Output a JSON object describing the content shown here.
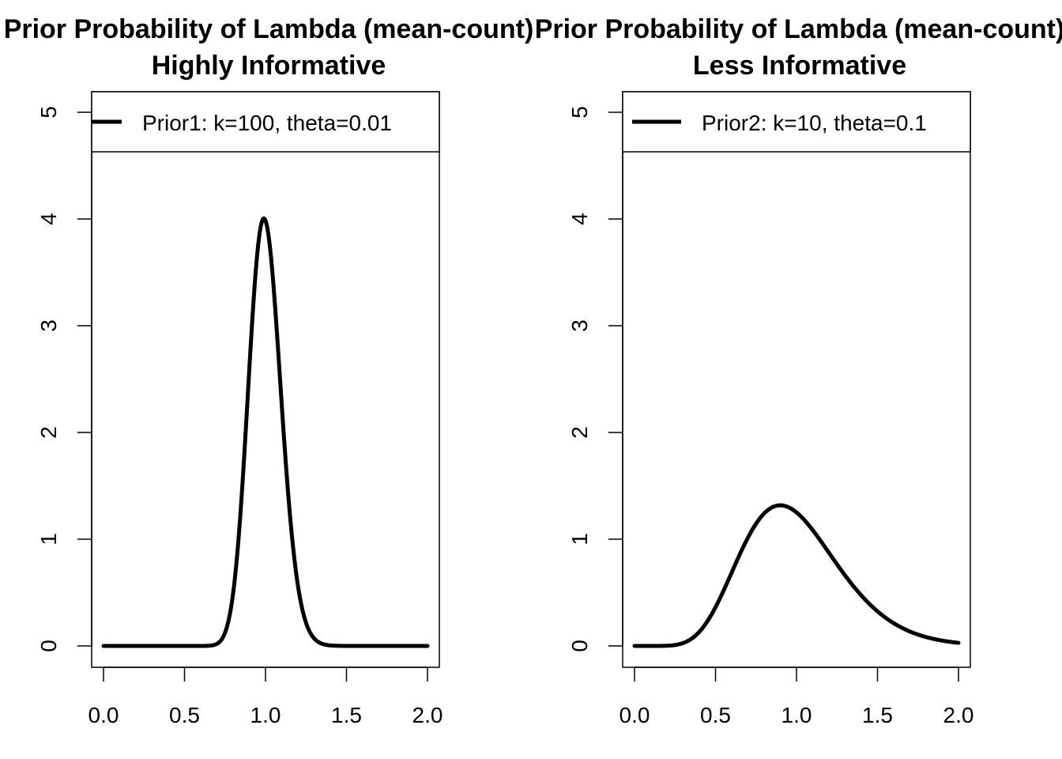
{
  "chart_data": [
    {
      "type": "line",
      "title": "Prior Probability of Lambda (mean-count)",
      "subtitle": "Highly Informative",
      "xlabel": "",
      "ylabel": "",
      "xlim": [
        0,
        2
      ],
      "ylim": [
        0,
        5
      ],
      "xticks": [
        "0.0",
        "0.5",
        "1.0",
        "1.5",
        "2.0"
      ],
      "yticks": [
        "0",
        "1",
        "2",
        "3",
        "4",
        "5"
      ],
      "grid": false,
      "legend_position": "top",
      "series": [
        {
          "name": "Prior1: k=100, theta=0.01",
          "distribution": "gamma",
          "shape": 100,
          "scale": 0.01,
          "x": [
            0.0,
            0.6,
            0.7,
            0.75,
            0.8,
            0.85,
            0.9,
            0.95,
            1.0,
            1.05,
            1.1,
            1.15,
            1.2,
            1.25,
            1.3,
            1.4,
            1.5,
            2.0
          ],
          "y": [
            0.0,
            0.0,
            0.02,
            0.09,
            0.29,
            0.72,
            1.44,
            2.45,
            3.99,
            3.62,
            2.86,
            2.04,
            1.33,
            0.79,
            0.42,
            0.09,
            0.01,
            0.0
          ]
        }
      ]
    },
    {
      "type": "line",
      "title": "Prior Probability of Lambda (mean-count)",
      "subtitle": "Less Informative",
      "xlabel": "",
      "ylabel": "",
      "xlim": [
        0,
        2
      ],
      "ylim": [
        0,
        5
      ],
      "xticks": [
        "0.0",
        "0.5",
        "1.0",
        "1.5",
        "2.0"
      ],
      "yticks": [
        "0",
        "1",
        "2",
        "3",
        "4",
        "5"
      ],
      "grid": false,
      "legend_position": "top",
      "series": [
        {
          "name": "Prior2: k=10, theta=0.1",
          "distribution": "gamma",
          "shape": 10,
          "scale": 0.1,
          "x": [
            0.0,
            0.1,
            0.2,
            0.3,
            0.4,
            0.5,
            0.6,
            0.7,
            0.8,
            0.9,
            1.0,
            1.1,
            1.2,
            1.3,
            1.4,
            1.5,
            1.6,
            1.7,
            1.8,
            1.9,
            2.0
          ],
          "y": [
            0.0,
            0.0,
            0.01,
            0.06,
            0.2,
            0.5,
            0.87,
            1.16,
            1.3,
            1.32,
            1.25,
            1.1,
            0.94,
            0.76,
            0.6,
            0.46,
            0.34,
            0.25,
            0.17,
            0.12,
            0.08
          ]
        }
      ]
    }
  ]
}
